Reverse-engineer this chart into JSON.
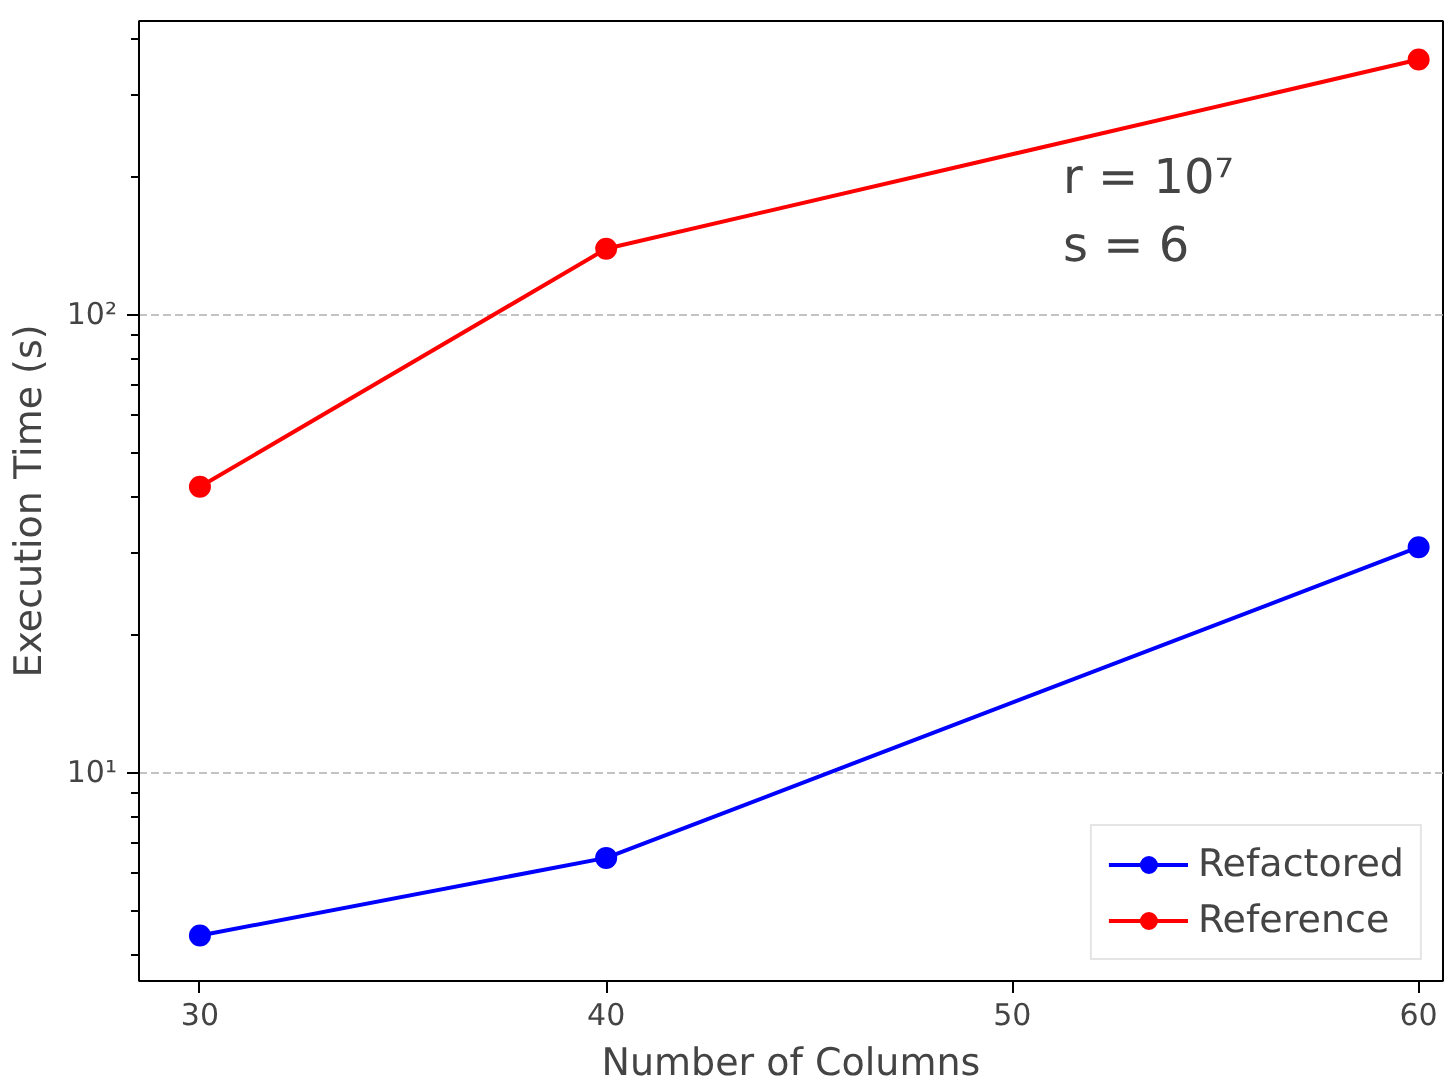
{
  "chart_data": {
    "type": "line",
    "xlabel": "Number of Columns",
    "ylabel": "Execution Time (s)",
    "x": [
      30,
      40,
      60
    ],
    "series": [
      {
        "name": "Refactored",
        "color": "#0000ff",
        "values": [
          4.4,
          6.5,
          31
        ]
      },
      {
        "name": "Reference",
        "color": "#ff0000",
        "values": [
          42,
          139,
          360
        ]
      }
    ],
    "xlim": [
      28.5,
      60.6
    ],
    "xticks": [
      30,
      40,
      50,
      60
    ],
    "ylim": [
      3.5,
      437
    ],
    "yticks": [
      {
        "value": 10,
        "label": "10¹"
      },
      {
        "value": 100,
        "label": "10²"
      }
    ],
    "log": "y",
    "grid": "y",
    "legend": "bottom right",
    "marker": "circle",
    "line_style": "solid",
    "annotations": [
      "r = 10⁷",
      "s = 6"
    ]
  }
}
